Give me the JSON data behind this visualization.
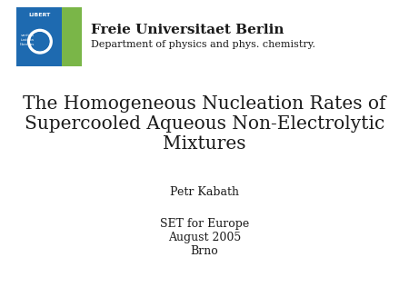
{
  "background_color": "#ffffff",
  "university_name": "Freie Universitaet Berlin",
  "university_dept": "Department of physics and phys. chemistry.",
  "title_line1": "The Homogeneous Nucleation Rates of",
  "title_line2": "Supercooled Aqueous Non-Electrolytic",
  "title_line3": "Mixtures",
  "author": "Petr Kabath",
  "event_line1": "SET for Europe",
  "event_line2": "August 2005",
  "event_line3": "Brno",
  "logo_bg_blue": "#1e6ab0",
  "logo_accent_green": "#7ab648",
  "text_color": "#1a1a1a",
  "title_fontsize": 14.5,
  "university_fontsize": 11,
  "dept_fontsize": 8,
  "author_fontsize": 9,
  "event_fontsize": 9
}
